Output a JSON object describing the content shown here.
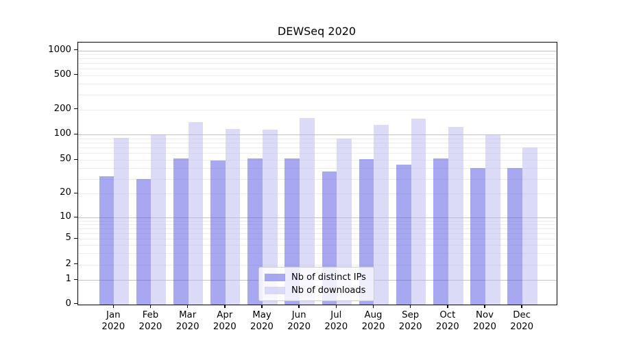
{
  "colors": {
    "ips_bar": "rgba(81,81,225,0.5)",
    "downloads_bar": "rgba(183,183,241,0.5)",
    "grid_major": "#c2c2c2",
    "grid_minor": "#ececec",
    "spine": "#000000",
    "text": "#000000",
    "legend_bg": "rgba(255,255,255,0.8)",
    "legend_border": "#cccccc"
  },
  "chart_data": {
    "type": "bar",
    "title": "DEWSeq 2020",
    "categories": [
      "Jan 2020",
      "Feb 2020",
      "Mar 2020",
      "Apr 2020",
      "May 2020",
      "Jun 2020",
      "Jul 2020",
      "Aug 2020",
      "Sep 2020",
      "Oct 2020",
      "Nov 2020",
      "Dec 2020"
    ],
    "series": [
      {
        "name": "Nb of distinct IPs",
        "values": [
          32,
          30,
          52,
          49,
          52,
          52,
          37,
          51,
          44,
          52,
          40,
          40
        ]
      },
      {
        "name": "Nb of downloads",
        "values": [
          91,
          101,
          142,
          118,
          116,
          160,
          90,
          131,
          157,
          123,
          100,
          70
        ]
      }
    ],
    "y_axis": {
      "scale": "log",
      "tick_values": [
        0,
        1,
        2,
        5,
        10,
        20,
        50,
        100,
        200,
        500,
        1000
      ],
      "tick_labels": [
        "0",
        "1",
        "2",
        "5",
        "10",
        "20",
        "50",
        "100",
        "200",
        "500",
        "1000"
      ],
      "ylim": [
        0,
        1300
      ]
    },
    "xlabel": "",
    "ylabel": "",
    "grid": "horizontal",
    "legend_position": "inside-lower-center"
  }
}
